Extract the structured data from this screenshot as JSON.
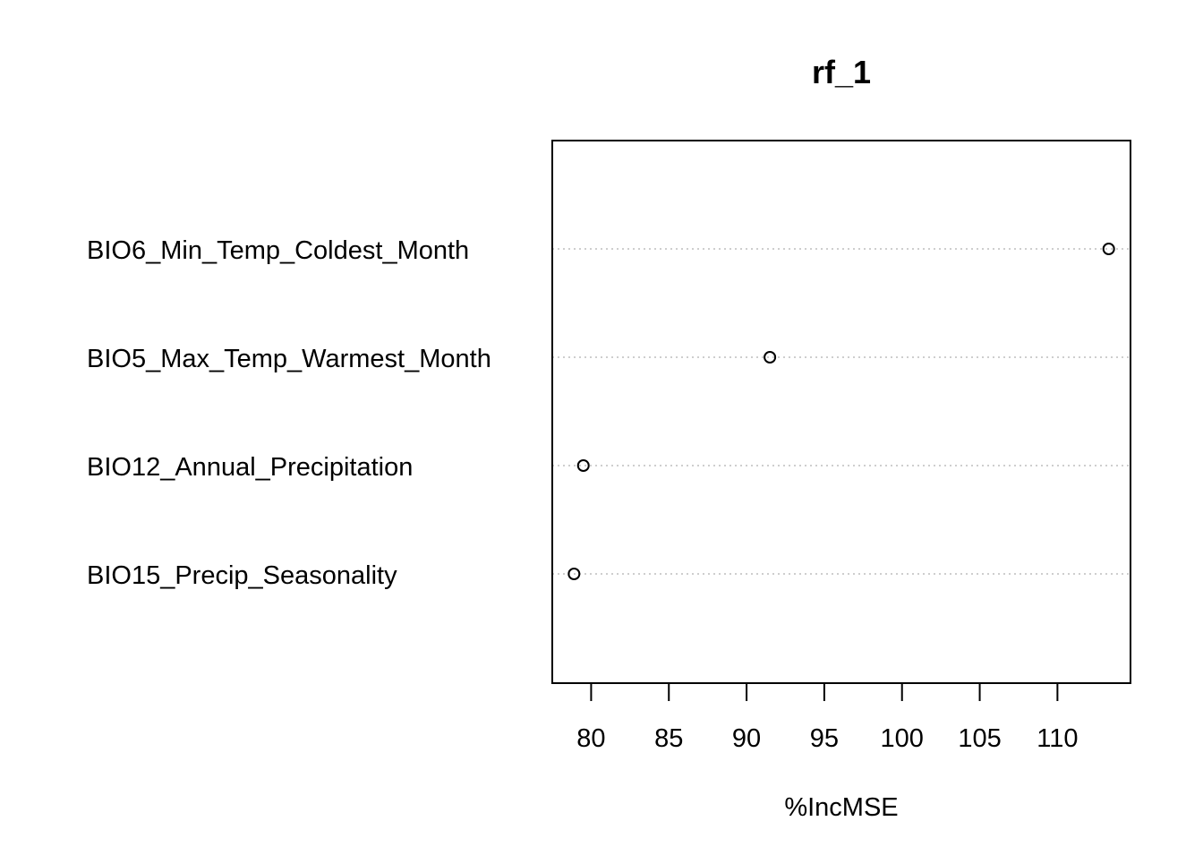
{
  "chart_data": {
    "type": "scatter",
    "chart_style": "dotchart",
    "title": "rf_1",
    "xlabel": "%IncMSE",
    "ylabel": "",
    "categories": [
      "BIO6_Min_Temp_Coldest_Month",
      "BIO5_Max_Temp_Warmest_Month",
      "BIO12_Annual_Precipitation",
      "BIO15_Precip_Seasonality"
    ],
    "values": [
      113.3,
      91.5,
      79.5,
      78.9
    ],
    "xlim": [
      77.5,
      114.7
    ],
    "xticks": [
      80,
      85,
      90,
      95,
      100,
      105,
      110
    ],
    "xtick_labels": [
      "80",
      "85",
      "90",
      "95",
      "100",
      "105",
      "110"
    ],
    "gridlines": "dotted horizontal",
    "legend": "none",
    "colors": {
      "point": "#000000",
      "frame": "#000000",
      "grid": "#bebebe",
      "background": "#ffffff"
    }
  }
}
